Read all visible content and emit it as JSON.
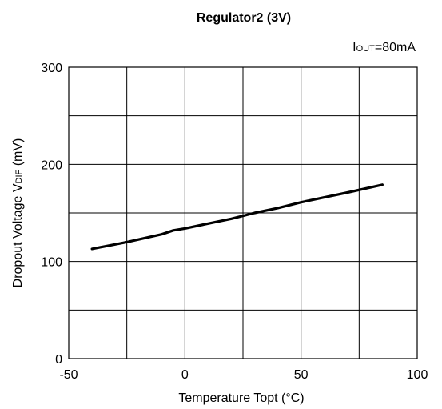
{
  "chart_data": {
    "type": "line",
    "title": "Regulator2 (3V)",
    "annotation": {
      "main": "I",
      "sub": "OUT",
      "rest": "=80mA"
    },
    "xlabel": "Temperature Topt (°C)",
    "ylabel": {
      "main": "Dropout Voltage V",
      "sub": "DIF",
      "rest": " (mV)"
    },
    "xlim": [
      -50,
      100
    ],
    "ylim": [
      0,
      300
    ],
    "xticks": [
      -50,
      0,
      50,
      100
    ],
    "xtick_labels": [
      "-50",
      "0",
      "50",
      "100"
    ],
    "yticks": [
      0,
      100,
      200,
      300
    ],
    "ytick_labels": [
      "0",
      "100",
      "200",
      "300"
    ],
    "grid_x": [
      -25,
      0,
      25,
      50,
      75
    ],
    "grid_y": [
      50,
      100,
      150,
      200,
      250
    ],
    "grid": true,
    "series": [
      {
        "x": [
          -40,
          -25,
          -10,
          -5,
          0,
          10,
          20,
          30,
          40,
          50,
          60,
          70,
          85
        ],
        "y": [
          113,
          120,
          128,
          132,
          134,
          139,
          144,
          150,
          155,
          161,
          166,
          171,
          179
        ],
        "color": "#000000"
      }
    ]
  }
}
